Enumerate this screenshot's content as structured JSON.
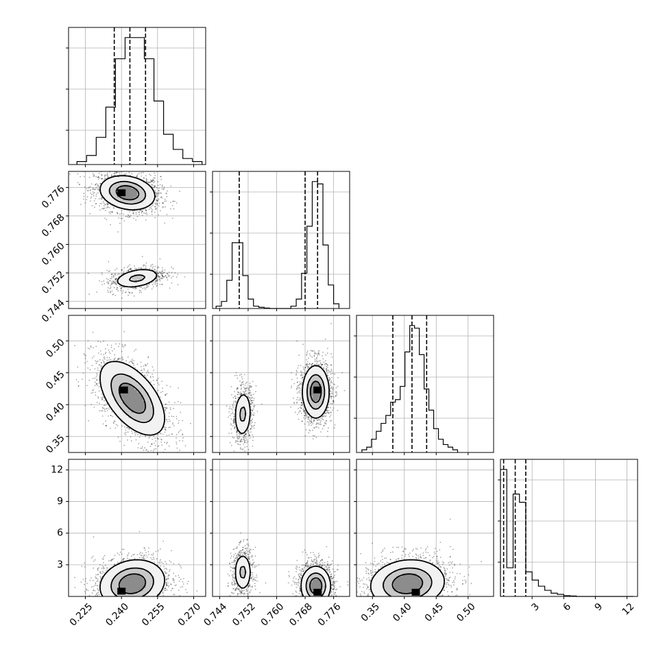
{
  "chart_data": {
    "type": "corner",
    "parameters": [
      {
        "ticks": [
          0.225,
          0.24,
          0.255,
          0.27
        ],
        "tick_labels": [
          "0.225",
          "0.240",
          "0.255",
          "0.270"
        ],
        "range": [
          0.218,
          0.275
        ],
        "quantiles": [
          0.237,
          0.2435,
          0.25
        ],
        "hist_bins": [
          0.2215,
          0.2255,
          0.2295,
          0.2335,
          0.2375,
          0.2415,
          0.2455,
          0.2495,
          0.2535,
          0.2575,
          0.2615,
          0.2655,
          0.2695,
          0.2735
        ],
        "hist_counts": [
          1,
          3,
          9,
          19,
          35,
          42,
          42,
          35,
          21,
          10,
          5,
          2,
          1
        ]
      },
      {
        "ticks": [
          0.744,
          0.752,
          0.76,
          0.768,
          0.776
        ],
        "tick_labels": [
          "0.744",
          "0.752",
          "0.760",
          "0.768",
          "0.776"
        ],
        "range": [
          0.742,
          0.7805
        ],
        "quantiles": [
          0.7495,
          0.768,
          0.7715
        ],
        "hist_bins": [
          0.743,
          0.7445,
          0.746,
          0.7475,
          0.749,
          0.7505,
          0.752,
          0.7535,
          0.755,
          0.7565,
          0.758,
          0.7595,
          0.761,
          0.7625,
          0.764,
          0.7655,
          0.767,
          0.7685,
          0.77,
          0.7715,
          0.773,
          0.7745,
          0.776,
          0.7775
        ],
        "hist_counts": [
          1,
          3,
          12,
          28,
          28,
          14,
          4,
          1,
          0.5,
          0.2,
          0,
          0,
          0,
          0,
          1,
          4,
          15,
          35,
          54,
          53,
          27,
          10,
          2
        ]
      },
      {
        "ticks": [
          0.35,
          0.4,
          0.45,
          0.5
        ],
        "tick_labels": [
          "0.35",
          "0.40",
          "0.45",
          "0.50"
        ],
        "range": [
          0.325,
          0.54
        ],
        "quantiles": [
          0.382,
          0.412,
          0.435
        ],
        "hist_bins": [
          0.3335,
          0.341,
          0.3485,
          0.356,
          0.3635,
          0.371,
          0.3785,
          0.386,
          0.3935,
          0.401,
          0.4085,
          0.416,
          0.4235,
          0.431,
          0.4385,
          0.446,
          0.4535,
          0.461,
          0.4685,
          0.476,
          0.4835
        ],
        "hist_counts": [
          1,
          2,
          5,
          8,
          11,
          14,
          19,
          20,
          25,
          38,
          48,
          47,
          37,
          24,
          16,
          9,
          5,
          3,
          2,
          1
        ]
      },
      {
        "ticks": [
          3,
          6,
          9,
          12
        ],
        "tick_labels": [
          "3",
          "6",
          "9",
          "12"
        ],
        "range": [
          0.0,
          13.0
        ],
        "quantiles": [
          0.3,
          1.4,
          2.4
        ],
        "hist_bins": [
          0.0,
          0.6,
          1.2,
          1.8,
          2.4,
          3.0,
          3.6,
          4.2,
          4.8,
          5.4,
          6.0,
          6.6,
          7.2,
          7.8,
          8.4,
          9.0,
          9.6,
          10.2,
          10.8,
          11.4,
          12.0,
          12.6
        ],
        "hist_counts": [
          31,
          7,
          25,
          23,
          6,
          4,
          2.5,
          1.5,
          0.8,
          0.5,
          0.2,
          0.1,
          0,
          0,
          0,
          0,
          0,
          0,
          0,
          0,
          0
        ]
      }
    ],
    "diag_ticks": [
      [
        0,
        20,
        40
      ],
      [
        0,
        20,
        40
      ],
      [
        0,
        20,
        40
      ],
      [
        0,
        20,
        40
      ]
    ],
    "pairs": [
      {
        "row": 1,
        "col": 0,
        "modes": [
          {
            "cx": 0.2425,
            "cy": 0.7745,
            "sx": 0.0055,
            "sy": 0.0023,
            "rho": -0.2,
            "w": 1.0,
            "peak": [
              0.24,
              0.7745
            ]
          },
          {
            "cx": 0.2465,
            "cy": 0.7505,
            "sx": 0.0048,
            "sy": 0.0014,
            "rho": 0.35,
            "w": 0.5
          }
        ]
      },
      {
        "row": 2,
        "col": 0,
        "modes": [
          {
            "cx": 0.2445,
            "cy": 0.41,
            "sx": 0.0065,
            "sy": 0.028,
            "rho": -0.55,
            "w": 1.0,
            "peak": [
              0.241,
              0.423
            ]
          }
        ]
      },
      {
        "row": 2,
        "col": 1,
        "modes": [
          {
            "cx": 0.7505,
            "cy": 0.385,
            "sx": 0.0012,
            "sy": 0.018,
            "rho": 0.1,
            "w": 0.5
          },
          {
            "cx": 0.771,
            "cy": 0.42,
            "sx": 0.0018,
            "sy": 0.02,
            "rho": 0.0,
            "w": 1.0,
            "peak": [
              0.7715,
              0.423
            ]
          }
        ]
      },
      {
        "row": 3,
        "col": 0,
        "modes": [
          {
            "cx": 0.2445,
            "cy": 1.2,
            "sx": 0.0065,
            "sy": 1.1,
            "rho": 0.15,
            "w": 1.0,
            "peak": [
              0.24,
              0.5
            ]
          }
        ]
      },
      {
        "row": 3,
        "col": 1,
        "modes": [
          {
            "cx": 0.7505,
            "cy": 2.3,
            "sx": 0.0012,
            "sy": 0.9,
            "rho": 0.0,
            "w": 0.5
          },
          {
            "cx": 0.771,
            "cy": 1.0,
            "sx": 0.002,
            "sy": 0.9,
            "rho": 0.0,
            "w": 1.0,
            "peak": [
              0.7715,
              0.4
            ]
          }
        ]
      },
      {
        "row": 3,
        "col": 2,
        "modes": [
          {
            "cx": 0.405,
            "cy": 1.2,
            "sx": 0.028,
            "sy": 1.1,
            "rho": 0.1,
            "w": 1.0,
            "peak": [
              0.418,
              0.4
            ]
          }
        ]
      }
    ],
    "contour_levels": [
      0.12,
      0.4,
      0.7
    ],
    "grid": true,
    "title": "",
    "xlabel": "",
    "ylabel": ""
  }
}
